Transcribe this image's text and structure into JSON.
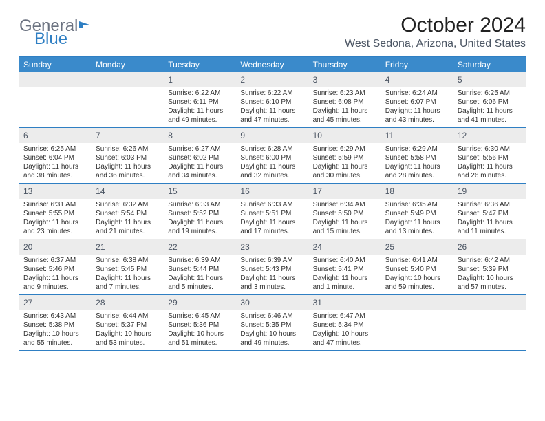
{
  "brand": {
    "part1": "General",
    "part2": "Blue"
  },
  "title": "October 2024",
  "location": "West Sedona, Arizona, United States",
  "colors": {
    "header_bg": "#3a8acb",
    "border": "#2f7fc3",
    "day_header_bg": "#ececec",
    "text": "#1a1a1a",
    "muted": "#4b5563"
  },
  "weekdays": [
    "Sunday",
    "Monday",
    "Tuesday",
    "Wednesday",
    "Thursday",
    "Friday",
    "Saturday"
  ],
  "weeks": [
    [
      null,
      null,
      {
        "n": "1",
        "sr": "Sunrise: 6:22 AM",
        "ss": "Sunset: 6:11 PM",
        "dl": "Daylight: 11 hours and 49 minutes."
      },
      {
        "n": "2",
        "sr": "Sunrise: 6:22 AM",
        "ss": "Sunset: 6:10 PM",
        "dl": "Daylight: 11 hours and 47 minutes."
      },
      {
        "n": "3",
        "sr": "Sunrise: 6:23 AM",
        "ss": "Sunset: 6:08 PM",
        "dl": "Daylight: 11 hours and 45 minutes."
      },
      {
        "n": "4",
        "sr": "Sunrise: 6:24 AM",
        "ss": "Sunset: 6:07 PM",
        "dl": "Daylight: 11 hours and 43 minutes."
      },
      {
        "n": "5",
        "sr": "Sunrise: 6:25 AM",
        "ss": "Sunset: 6:06 PM",
        "dl": "Daylight: 11 hours and 41 minutes."
      }
    ],
    [
      {
        "n": "6",
        "sr": "Sunrise: 6:25 AM",
        "ss": "Sunset: 6:04 PM",
        "dl": "Daylight: 11 hours and 38 minutes."
      },
      {
        "n": "7",
        "sr": "Sunrise: 6:26 AM",
        "ss": "Sunset: 6:03 PM",
        "dl": "Daylight: 11 hours and 36 minutes."
      },
      {
        "n": "8",
        "sr": "Sunrise: 6:27 AM",
        "ss": "Sunset: 6:02 PM",
        "dl": "Daylight: 11 hours and 34 minutes."
      },
      {
        "n": "9",
        "sr": "Sunrise: 6:28 AM",
        "ss": "Sunset: 6:00 PM",
        "dl": "Daylight: 11 hours and 32 minutes."
      },
      {
        "n": "10",
        "sr": "Sunrise: 6:29 AM",
        "ss": "Sunset: 5:59 PM",
        "dl": "Daylight: 11 hours and 30 minutes."
      },
      {
        "n": "11",
        "sr": "Sunrise: 6:29 AM",
        "ss": "Sunset: 5:58 PM",
        "dl": "Daylight: 11 hours and 28 minutes."
      },
      {
        "n": "12",
        "sr": "Sunrise: 6:30 AM",
        "ss": "Sunset: 5:56 PM",
        "dl": "Daylight: 11 hours and 26 minutes."
      }
    ],
    [
      {
        "n": "13",
        "sr": "Sunrise: 6:31 AM",
        "ss": "Sunset: 5:55 PM",
        "dl": "Daylight: 11 hours and 23 minutes."
      },
      {
        "n": "14",
        "sr": "Sunrise: 6:32 AM",
        "ss": "Sunset: 5:54 PM",
        "dl": "Daylight: 11 hours and 21 minutes."
      },
      {
        "n": "15",
        "sr": "Sunrise: 6:33 AM",
        "ss": "Sunset: 5:52 PM",
        "dl": "Daylight: 11 hours and 19 minutes."
      },
      {
        "n": "16",
        "sr": "Sunrise: 6:33 AM",
        "ss": "Sunset: 5:51 PM",
        "dl": "Daylight: 11 hours and 17 minutes."
      },
      {
        "n": "17",
        "sr": "Sunrise: 6:34 AM",
        "ss": "Sunset: 5:50 PM",
        "dl": "Daylight: 11 hours and 15 minutes."
      },
      {
        "n": "18",
        "sr": "Sunrise: 6:35 AM",
        "ss": "Sunset: 5:49 PM",
        "dl": "Daylight: 11 hours and 13 minutes."
      },
      {
        "n": "19",
        "sr": "Sunrise: 6:36 AM",
        "ss": "Sunset: 5:47 PM",
        "dl": "Daylight: 11 hours and 11 minutes."
      }
    ],
    [
      {
        "n": "20",
        "sr": "Sunrise: 6:37 AM",
        "ss": "Sunset: 5:46 PM",
        "dl": "Daylight: 11 hours and 9 minutes."
      },
      {
        "n": "21",
        "sr": "Sunrise: 6:38 AM",
        "ss": "Sunset: 5:45 PM",
        "dl": "Daylight: 11 hours and 7 minutes."
      },
      {
        "n": "22",
        "sr": "Sunrise: 6:39 AM",
        "ss": "Sunset: 5:44 PM",
        "dl": "Daylight: 11 hours and 5 minutes."
      },
      {
        "n": "23",
        "sr": "Sunrise: 6:39 AM",
        "ss": "Sunset: 5:43 PM",
        "dl": "Daylight: 11 hours and 3 minutes."
      },
      {
        "n": "24",
        "sr": "Sunrise: 6:40 AM",
        "ss": "Sunset: 5:41 PM",
        "dl": "Daylight: 11 hours and 1 minute."
      },
      {
        "n": "25",
        "sr": "Sunrise: 6:41 AM",
        "ss": "Sunset: 5:40 PM",
        "dl": "Daylight: 10 hours and 59 minutes."
      },
      {
        "n": "26",
        "sr": "Sunrise: 6:42 AM",
        "ss": "Sunset: 5:39 PM",
        "dl": "Daylight: 10 hours and 57 minutes."
      }
    ],
    [
      {
        "n": "27",
        "sr": "Sunrise: 6:43 AM",
        "ss": "Sunset: 5:38 PM",
        "dl": "Daylight: 10 hours and 55 minutes."
      },
      {
        "n": "28",
        "sr": "Sunrise: 6:44 AM",
        "ss": "Sunset: 5:37 PM",
        "dl": "Daylight: 10 hours and 53 minutes."
      },
      {
        "n": "29",
        "sr": "Sunrise: 6:45 AM",
        "ss": "Sunset: 5:36 PM",
        "dl": "Daylight: 10 hours and 51 minutes."
      },
      {
        "n": "30",
        "sr": "Sunrise: 6:46 AM",
        "ss": "Sunset: 5:35 PM",
        "dl": "Daylight: 10 hours and 49 minutes."
      },
      {
        "n": "31",
        "sr": "Sunrise: 6:47 AM",
        "ss": "Sunset: 5:34 PM",
        "dl": "Daylight: 10 hours and 47 minutes."
      },
      null,
      null
    ]
  ]
}
